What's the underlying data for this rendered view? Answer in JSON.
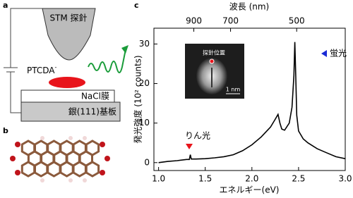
{
  "panel_a": {
    "label": "a",
    "tip": "STM 探針",
    "molecule": "PTCDA",
    "charge": "-",
    "film": "NaCl膜",
    "substrate": "銀(111)基板"
  },
  "panel_b": {
    "label": "b"
  },
  "chart_data": {
    "type": "line",
    "label": "c",
    "x2label": "波長 (nm)",
    "xlabel": "エネルギー(eV)",
    "ylabel": "発光強度 (10² counts)",
    "x": [
      1.0,
      1.1,
      1.2,
      1.3,
      1.33,
      1.34,
      1.35,
      1.4,
      1.5,
      1.6,
      1.7,
      1.8,
      1.9,
      2.0,
      2.1,
      2.2,
      2.25,
      2.28,
      2.3,
      2.32,
      2.35,
      2.4,
      2.43,
      2.45,
      2.46,
      2.47,
      2.48,
      2.5,
      2.55,
      2.6,
      2.7,
      2.8,
      2.9,
      3.0
    ],
    "values": [
      0,
      0.3,
      0.5,
      0.8,
      0.8,
      2.0,
      0.9,
      0.9,
      1.0,
      1.2,
      1.5,
      2.0,
      3.0,
      4.5,
      6.5,
      9.0,
      11.0,
      12.2,
      10.0,
      8.5,
      8.2,
      10.0,
      14.0,
      22.0,
      30.5,
      22.0,
      12.0,
      8.0,
      6.0,
      5.0,
      3.5,
      2.5,
      1.5,
      1.0
    ],
    "color": "#000000",
    "xlim": [
      0.95,
      3.0
    ],
    "ylim": [
      -2,
      34
    ],
    "xticks": [
      {
        "value": 1,
        "label": "1.0"
      },
      1.5,
      {
        "value": 2,
        "label": "2.0"
      },
      2.5,
      {
        "value": 3,
        "label": "3.0"
      }
    ],
    "yticks": [
      0,
      10,
      20,
      30
    ],
    "x2ticks": [
      900,
      700,
      500
    ],
    "annotations": [
      "りん光",
      "蛍光"
    ],
    "inset": {
      "label": "探針位置",
      "scale_bar": "1 nm"
    }
  }
}
